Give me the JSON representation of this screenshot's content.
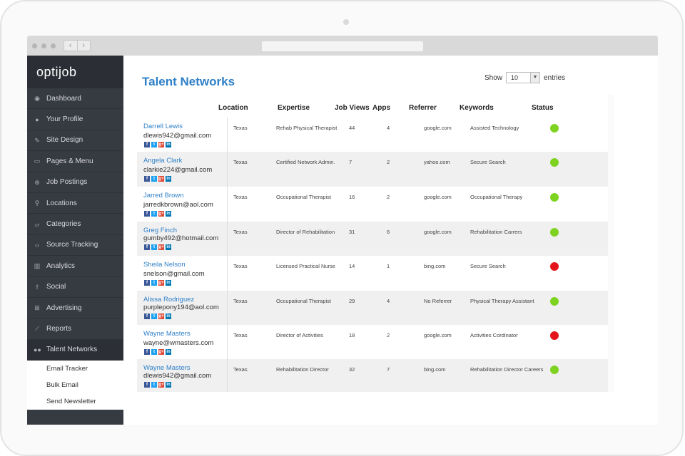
{
  "sidebar": {
    "logo": "optijob",
    "items": [
      {
        "label": "Dashboard",
        "icon": "dashboard-icon",
        "glyph": "◉"
      },
      {
        "label": "Your Profile",
        "icon": "user-icon",
        "glyph": "●"
      },
      {
        "label": "Site Design",
        "icon": "brush-icon",
        "glyph": "✎"
      },
      {
        "label": "Pages & Menu",
        "icon": "page-icon",
        "glyph": "▭"
      },
      {
        "label": "Job Postings",
        "icon": "plus-circle-icon",
        "glyph": "⊕"
      },
      {
        "label": "Locations",
        "icon": "map-pin-icon",
        "glyph": "⚲"
      },
      {
        "label": "Categories",
        "icon": "folder-icon",
        "glyph": "▱"
      },
      {
        "label": "Source Tracking",
        "icon": "code-icon",
        "glyph": "‹›"
      },
      {
        "label": "Analytics",
        "icon": "bar-chart-icon",
        "glyph": "▥"
      },
      {
        "label": "Social",
        "icon": "facebook-icon",
        "glyph": "f"
      },
      {
        "label": "Advertising",
        "icon": "grid-icon",
        "glyph": "⊞"
      },
      {
        "label": "Reports",
        "icon": "line-chart-icon",
        "glyph": "⟋"
      },
      {
        "label": "Talent Networks",
        "icon": "users-icon",
        "glyph": "●●"
      }
    ],
    "sub_items": [
      "Email Tracker",
      "Bulk Email",
      "Send Newsletter"
    ]
  },
  "main": {
    "title": "Talent Networks",
    "show_label": "Show",
    "show_value": "10",
    "entries_label": "entries"
  },
  "table": {
    "headers": [
      "Location",
      "Expertise",
      "Job Views",
      "Apps",
      "Referrer",
      "Keywords",
      "Status"
    ],
    "rows": [
      {
        "name": "Darrell Lewis",
        "email": "dlewis942@gmail.com",
        "location": "Texas",
        "expertise": "Rehab Physical Therapist",
        "views": "44",
        "apps": "4",
        "referrer": "google.com",
        "keywords": "Assisted Technology",
        "status": "active"
      },
      {
        "name": "Angela Clark",
        "email": "clarkie224@gmail.com",
        "location": "Texas",
        "expertise": "Certified Network Admin.",
        "views": "7",
        "apps": "2",
        "referrer": "yahoo.com",
        "keywords": "Secure Search",
        "status": "active"
      },
      {
        "name": "Jarred Brown",
        "email": "jarredkbrown@aol.com",
        "location": "Texas",
        "expertise": "Occupational Therapist",
        "views": "16",
        "apps": "2",
        "referrer": "google.com",
        "keywords": "Occupational Therapy",
        "status": "active"
      },
      {
        "name": "Greg Finch",
        "email": "gumby492@hotmail.com",
        "location": "Texas",
        "expertise": "Director of Rehabilitation",
        "views": "31",
        "apps": "6",
        "referrer": "google.com",
        "keywords": "Rehabilitation Carrers",
        "status": "active"
      },
      {
        "name": "Sheila Nelson",
        "email": "snelson@gmail.com",
        "location": "Texas",
        "expertise": "Licensed Practical Nurse",
        "views": "14",
        "apps": "1",
        "referrer": "bing.com",
        "keywords": "Secure Search",
        "status": "inactive"
      },
      {
        "name": "Alissa Rodriguez",
        "email": "purplepony194@aol.com",
        "location": "Texas",
        "expertise": "Occupational Therapist",
        "views": "29",
        "apps": "4",
        "referrer": "No Referrer",
        "keywords": "Physical Therapy Assistant",
        "status": "active"
      },
      {
        "name": "Wayne Masters",
        "email": "wayne@wmasters.com",
        "location": "Texas",
        "expertise": "Director of Activities",
        "views": "18",
        "apps": "2",
        "referrer": "google.com",
        "keywords": "Activities Cordinator",
        "status": "inactive"
      },
      {
        "name": "Wayne Masters",
        "email": "dlewis942@gmail.com",
        "location": "Texas",
        "expertise": "Rehabilitation Director",
        "views": "32",
        "apps": "7",
        "referrer": "bing.com",
        "keywords": "Rehabilitation Director Careers",
        "status": "active"
      }
    ]
  },
  "social_icons": [
    {
      "icon": "facebook-icon",
      "glyph": "f"
    },
    {
      "icon": "twitter-icon",
      "glyph": "t"
    },
    {
      "icon": "google-plus-icon",
      "glyph": "g+"
    },
    {
      "icon": "linkedin-icon",
      "glyph": "in"
    }
  ],
  "colors": {
    "accent": "#2e7fc7",
    "sidebar": "#363a41",
    "status_active": "#7ed321",
    "status_inactive": "#e3151a"
  }
}
